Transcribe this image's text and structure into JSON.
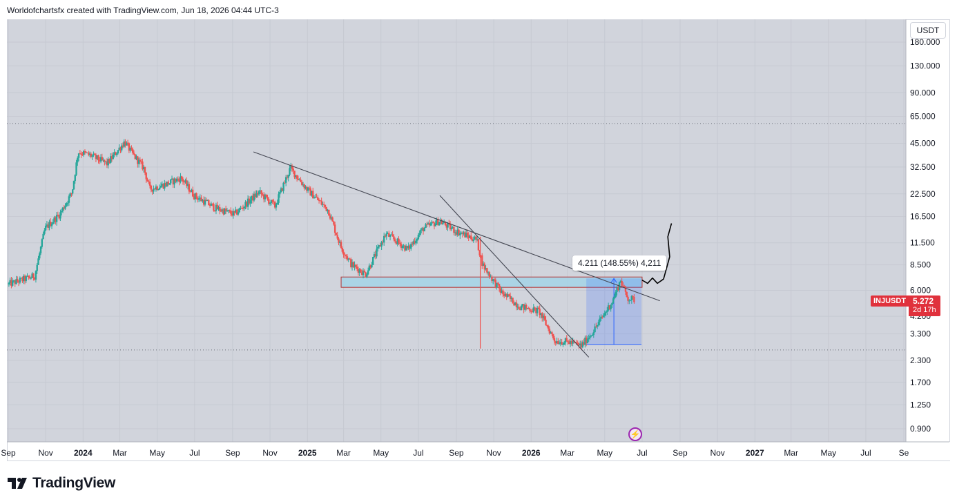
{
  "header": {
    "caption": "Worldofchartsfx created with TradingView.com, Jun 18, 2026 04:44 UTC-3"
  },
  "currency_button": {
    "label": "USDT"
  },
  "symbol": {
    "ticker": "INJUSDT",
    "price": "5.272",
    "countdown": "2d 17h"
  },
  "measure": {
    "label": "4.211 (148.55%) 4,211"
  },
  "brand": {
    "name": "TradingView"
  },
  "colors": {
    "up": "#26a69a",
    "down": "#ef5350",
    "background": "#d1d4dc",
    "accent": "#2962ff",
    "price_tag": "#e0313c"
  },
  "chart_data": {
    "type": "candlestick",
    "scale": "log",
    "y_ticks": [
      0.9,
      1.25,
      1.7,
      2.3,
      3.3,
      4.2,
      6.0,
      8.5,
      11.5,
      16.5,
      22.5,
      32.5,
      45.0,
      65.0,
      90.0,
      130.0,
      180.0
    ],
    "y_tick_labels": [
      "0.900",
      "1.250",
      "1.700",
      "2.300",
      "3.300",
      "4.200",
      "6.000",
      "8.500",
      "11.500",
      "16.500",
      "22.500",
      "32.500",
      "45.000",
      "65.000",
      "90.000",
      "130.000",
      "180.000"
    ],
    "x_ticks": [
      {
        "label": "Sep",
        "date": "2023-09-01",
        "bold": false
      },
      {
        "label": "Nov",
        "date": "2023-11-01",
        "bold": false
      },
      {
        "label": "2024",
        "date": "2024-01-01",
        "bold": true
      },
      {
        "label": "Mar",
        "date": "2024-03-01",
        "bold": false
      },
      {
        "label": "May",
        "date": "2024-05-01",
        "bold": false
      },
      {
        "label": "Jul",
        "date": "2024-07-01",
        "bold": false
      },
      {
        "label": "Sep",
        "date": "2024-09-01",
        "bold": false
      },
      {
        "label": "Nov",
        "date": "2024-11-01",
        "bold": false
      },
      {
        "label": "2025",
        "date": "2025-01-01",
        "bold": true
      },
      {
        "label": "Mar",
        "date": "2025-03-01",
        "bold": false
      },
      {
        "label": "May",
        "date": "2025-05-01",
        "bold": false
      },
      {
        "label": "Jul",
        "date": "2025-07-01",
        "bold": false
      },
      {
        "label": "Sep",
        "date": "2025-09-01",
        "bold": false
      },
      {
        "label": "Nov",
        "date": "2025-11-01",
        "bold": false
      },
      {
        "label": "2026",
        "date": "2026-01-01",
        "bold": true
      },
      {
        "label": "Mar",
        "date": "2026-03-01",
        "bold": false
      },
      {
        "label": "May",
        "date": "2026-05-01",
        "bold": false
      },
      {
        "label": "Jul",
        "date": "2026-07-01",
        "bold": false
      },
      {
        "label": "Sep",
        "date": "2026-09-01",
        "bold": false
      },
      {
        "label": "Nov",
        "date": "2026-11-01",
        "bold": false
      },
      {
        "label": "2027",
        "date": "2027-01-01",
        "bold": true
      },
      {
        "label": "Mar",
        "date": "2027-03-01",
        "bold": false
      },
      {
        "label": "May",
        "date": "2027-05-01",
        "bold": false
      },
      {
        "label": "Jul",
        "date": "2027-07-01",
        "bold": false
      },
      {
        "label": "Se",
        "date": "2027-09-01",
        "bold": false
      }
    ],
    "candle_interval": "2D",
    "price_path": [
      {
        "date": "2023-09-01",
        "price": 6.5
      },
      {
        "date": "2023-10-15",
        "price": 7.3
      },
      {
        "date": "2023-11-01",
        "price": 14.0
      },
      {
        "date": "2023-11-25",
        "price": 17.0
      },
      {
        "date": "2023-12-15",
        "price": 23.0
      },
      {
        "date": "2023-12-25",
        "price": 40.0
      },
      {
        "date": "2024-01-15",
        "price": 38.0
      },
      {
        "date": "2024-02-10",
        "price": 34.0
      },
      {
        "date": "2024-03-10",
        "price": 46.0
      },
      {
        "date": "2024-03-20",
        "price": 40.0
      },
      {
        "date": "2024-04-10",
        "price": 32.0
      },
      {
        "date": "2024-04-20",
        "price": 24.0
      },
      {
        "date": "2024-05-20",
        "price": 26.0
      },
      {
        "date": "2024-06-10",
        "price": 28.0
      },
      {
        "date": "2024-07-01",
        "price": 22.0
      },
      {
        "date": "2024-08-05",
        "price": 18.5
      },
      {
        "date": "2024-09-05",
        "price": 17.0
      },
      {
        "date": "2024-10-15",
        "price": 23.0
      },
      {
        "date": "2024-11-10",
        "price": 19.0
      },
      {
        "date": "2024-12-05",
        "price": 32.0
      },
      {
        "date": "2025-01-01",
        "price": 24.0
      },
      {
        "date": "2025-02-05",
        "price": 18.0
      },
      {
        "date": "2025-02-25",
        "price": 11.0
      },
      {
        "date": "2025-03-15",
        "price": 8.5
      },
      {
        "date": "2025-04-07",
        "price": 7.5
      },
      {
        "date": "2025-05-10",
        "price": 13.0
      },
      {
        "date": "2025-06-15",
        "price": 10.5
      },
      {
        "date": "2025-07-10",
        "price": 14.0
      },
      {
        "date": "2025-08-05",
        "price": 15.5
      },
      {
        "date": "2025-09-01",
        "price": 13.5
      },
      {
        "date": "2025-10-05",
        "price": 12.0
      },
      {
        "date": "2025-10-15",
        "price": 8.5
      },
      {
        "date": "2025-11-15",
        "price": 5.8
      },
      {
        "date": "2025-12-15",
        "price": 4.8
      },
      {
        "date": "2026-01-15",
        "price": 4.5
      },
      {
        "date": "2026-02-10",
        "price": 3.0
      },
      {
        "date": "2026-03-05",
        "price": 2.95
      },
      {
        "date": "2026-03-25",
        "price": 2.8
      },
      {
        "date": "2026-04-15",
        "price": 3.5
      },
      {
        "date": "2026-05-15",
        "price": 5.2
      },
      {
        "date": "2026-05-28",
        "price": 6.9
      },
      {
        "date": "2026-06-08",
        "price": 5.4
      },
      {
        "date": "2026-06-18",
        "price": 5.272
      }
    ],
    "wicks": [
      {
        "date": "2025-10-10",
        "low": 2.7,
        "high": 12.5
      }
    ],
    "trendlines": [
      {
        "from": {
          "date": "2024-10-05",
          "price": 40.0
        },
        "to": {
          "date": "2026-07-30",
          "price": 5.2
        }
      },
      {
        "from": {
          "date": "2025-08-05",
          "price": 22.0
        },
        "to": {
          "date": "2026-04-05",
          "price": 2.4
        }
      }
    ],
    "horizontal_lines": [
      59.0,
      2.65
    ],
    "zone": {
      "from": "2025-02-25",
      "to": "2026-07-01",
      "low": 6.25,
      "high": 7.2
    },
    "measure": {
      "from": "2026-04-01",
      "to": "2026-06-30",
      "low": 2.85,
      "high": 7.06
    },
    "projection_path": [
      {
        "date": "2026-07-01",
        "price": 6.9
      },
      {
        "date": "2026-07-10",
        "price": 6.6
      },
      {
        "date": "2026-07-18",
        "price": 7.1
      },
      {
        "date": "2026-07-26",
        "price": 6.6
      },
      {
        "date": "2026-08-05",
        "price": 7.0
      },
      {
        "date": "2026-08-15",
        "price": 9.5
      },
      {
        "date": "2026-08-12",
        "price": 12.5
      },
      {
        "date": "2026-08-18",
        "price": 15.0
      }
    ]
  }
}
